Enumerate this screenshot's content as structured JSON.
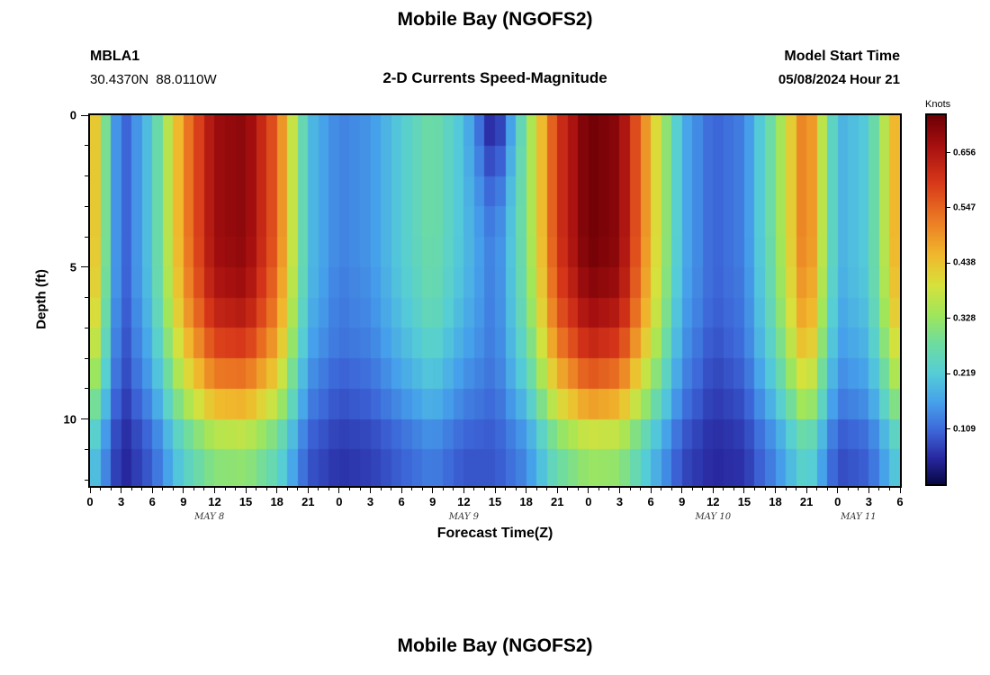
{
  "page": {
    "title": "Mobile Bay (NGOFS2)",
    "bottom_title": "Mobile Bay (NGOFS2)"
  },
  "header": {
    "station_id": "MBLA1",
    "coordinates": "30.4370N  88.0110W",
    "subtitle": "2-D Currents Speed-Magnitude",
    "model_start_label": "Model Start Time",
    "model_start_value": "05/08/2024 Hour 21"
  },
  "axes": {
    "x_label": "Forecast Time(Z)",
    "y_label": "Depth (ft)",
    "t_max": 78,
    "depth_max": 12.2,
    "x_tick_step_hours": 3,
    "x_tick_labels": [
      "0",
      "3",
      "6",
      "9",
      "12",
      "15",
      "18",
      "21",
      "0",
      "3",
      "6",
      "9",
      "12",
      "15",
      "18",
      "21",
      "0",
      "3",
      "6",
      "9",
      "12",
      "15",
      "18",
      "21",
      "0",
      "3",
      "6"
    ],
    "date_labels": [
      {
        "label": "MAY 8",
        "hour": 11.5
      },
      {
        "label": "MAY 9",
        "hour": 36
      },
      {
        "label": "MAY 10",
        "hour": 60
      },
      {
        "label": "MAY 11",
        "hour": 74
      }
    ],
    "y_ticks": [
      {
        "label": "0",
        "depth": 0
      },
      {
        "label": "5",
        "depth": 5
      },
      {
        "label": "10",
        "depth": 10
      }
    ]
  },
  "colorbar": {
    "title": "Knots",
    "tick_labels": [
      "0.656",
      "0.547",
      "0.438",
      "0.328",
      "0.219",
      "0.109"
    ],
    "tick_values": [
      0.656,
      0.547,
      0.438,
      0.328,
      0.219,
      0.109
    ],
    "vmin": 0,
    "vmax": 0.73
  },
  "chart_data": {
    "type": "heatmap",
    "title": "Mobile Bay (NGOFS2)",
    "subtitle": "2-D Currents Speed-Magnitude",
    "xlabel": "Forecast Time(Z)",
    "ylabel": "Depth (ft)",
    "units": "Knots",
    "x_hours": [
      0,
      3,
      6,
      9,
      12,
      15,
      18,
      21,
      24,
      27,
      30,
      33,
      36,
      39,
      42,
      45,
      48,
      51,
      54,
      57,
      60,
      63,
      66,
      69,
      72,
      75,
      78
    ],
    "depths_ft": [
      0,
      1,
      2,
      3,
      4,
      5,
      6,
      7,
      8,
      9,
      10,
      11
    ],
    "vmin": 0,
    "vmax": 0.73,
    "z": [
      [
        0.5,
        0.08,
        0.22,
        0.5,
        0.68,
        0.7,
        0.55,
        0.2,
        0.13,
        0.15,
        0.22,
        0.28,
        0.2,
        0.02,
        0.3,
        0.6,
        0.73,
        0.7,
        0.45,
        0.18,
        0.1,
        0.13,
        0.3,
        0.55,
        0.18,
        0.22,
        0.5
      ],
      [
        0.5,
        0.08,
        0.22,
        0.5,
        0.68,
        0.7,
        0.55,
        0.2,
        0.13,
        0.15,
        0.22,
        0.28,
        0.2,
        0.04,
        0.3,
        0.6,
        0.73,
        0.7,
        0.45,
        0.18,
        0.1,
        0.13,
        0.3,
        0.55,
        0.18,
        0.22,
        0.5
      ],
      [
        0.5,
        0.08,
        0.22,
        0.5,
        0.68,
        0.7,
        0.55,
        0.2,
        0.13,
        0.15,
        0.22,
        0.28,
        0.2,
        0.08,
        0.3,
        0.6,
        0.73,
        0.7,
        0.45,
        0.18,
        0.1,
        0.13,
        0.3,
        0.55,
        0.18,
        0.22,
        0.5
      ],
      [
        0.5,
        0.08,
        0.22,
        0.5,
        0.68,
        0.7,
        0.55,
        0.2,
        0.13,
        0.15,
        0.22,
        0.28,
        0.2,
        0.1,
        0.3,
        0.6,
        0.73,
        0.7,
        0.45,
        0.18,
        0.1,
        0.13,
        0.3,
        0.55,
        0.18,
        0.22,
        0.5
      ],
      [
        0.5,
        0.08,
        0.22,
        0.5,
        0.68,
        0.7,
        0.55,
        0.2,
        0.13,
        0.15,
        0.22,
        0.28,
        0.2,
        0.12,
        0.3,
        0.6,
        0.73,
        0.7,
        0.45,
        0.18,
        0.1,
        0.13,
        0.3,
        0.55,
        0.18,
        0.22,
        0.5
      ],
      [
        0.49,
        0.08,
        0.22,
        0.49,
        0.67,
        0.69,
        0.54,
        0.2,
        0.13,
        0.15,
        0.22,
        0.27,
        0.2,
        0.12,
        0.29,
        0.59,
        0.72,
        0.69,
        0.44,
        0.18,
        0.1,
        0.13,
        0.29,
        0.54,
        0.18,
        0.22,
        0.49
      ],
      [
        0.48,
        0.08,
        0.21,
        0.48,
        0.65,
        0.67,
        0.52,
        0.19,
        0.12,
        0.14,
        0.21,
        0.27,
        0.19,
        0.12,
        0.29,
        0.57,
        0.69,
        0.67,
        0.43,
        0.17,
        0.1,
        0.12,
        0.29,
        0.52,
        0.17,
        0.21,
        0.48
      ],
      [
        0.45,
        0.07,
        0.2,
        0.45,
        0.61,
        0.63,
        0.5,
        0.18,
        0.12,
        0.14,
        0.2,
        0.25,
        0.18,
        0.12,
        0.27,
        0.54,
        0.66,
        0.63,
        0.41,
        0.16,
        0.09,
        0.12,
        0.27,
        0.5,
        0.16,
        0.2,
        0.45
      ],
      [
        0.41,
        0.07,
        0.18,
        0.41,
        0.56,
        0.57,
        0.45,
        0.16,
        0.11,
        0.12,
        0.18,
        0.23,
        0.16,
        0.12,
        0.25,
        0.49,
        0.6,
        0.57,
        0.37,
        0.15,
        0.08,
        0.11,
        0.25,
        0.45,
        0.15,
        0.18,
        0.41
      ],
      [
        0.36,
        0.06,
        0.16,
        0.36,
        0.49,
        0.5,
        0.4,
        0.14,
        0.09,
        0.11,
        0.16,
        0.2,
        0.14,
        0.11,
        0.22,
        0.43,
        0.53,
        0.5,
        0.32,
        0.13,
        0.07,
        0.09,
        0.22,
        0.4,
        0.13,
        0.16,
        0.36
      ],
      [
        0.3,
        0.05,
        0.13,
        0.3,
        0.41,
        0.42,
        0.33,
        0.12,
        0.08,
        0.09,
        0.13,
        0.17,
        0.12,
        0.1,
        0.18,
        0.36,
        0.44,
        0.42,
        0.27,
        0.11,
        0.06,
        0.08,
        0.18,
        0.33,
        0.11,
        0.13,
        0.3
      ],
      [
        0.23,
        0.04,
        0.1,
        0.23,
        0.31,
        0.32,
        0.25,
        0.09,
        0.06,
        0.07,
        0.1,
        0.13,
        0.09,
        0.09,
        0.14,
        0.27,
        0.33,
        0.32,
        0.2,
        0.08,
        0.05,
        0.06,
        0.14,
        0.25,
        0.08,
        0.1,
        0.23
      ]
    ],
    "colormap": [
      {
        "f": 0.0,
        "color": [
          8,
          8,
          70
        ]
      },
      {
        "f": 0.07,
        "color": [
          40,
          40,
          160
        ]
      },
      {
        "f": 0.14,
        "color": [
          60,
          100,
          215
        ]
      },
      {
        "f": 0.22,
        "color": [
          70,
          160,
          235
        ]
      },
      {
        "f": 0.3,
        "color": [
          85,
          205,
          215
        ]
      },
      {
        "f": 0.38,
        "color": [
          110,
          220,
          160
        ]
      },
      {
        "f": 0.46,
        "color": [
          160,
          230,
          90
        ]
      },
      {
        "f": 0.54,
        "color": [
          215,
          225,
          60
        ]
      },
      {
        "f": 0.62,
        "color": [
          240,
          185,
          45
        ]
      },
      {
        "f": 0.72,
        "color": [
          235,
          120,
          35
        ]
      },
      {
        "f": 0.82,
        "color": [
          215,
          55,
          25
        ]
      },
      {
        "f": 0.92,
        "color": [
          165,
          15,
          15
        ]
      },
      {
        "f": 1.0,
        "color": [
          110,
          0,
          5
        ]
      }
    ]
  }
}
